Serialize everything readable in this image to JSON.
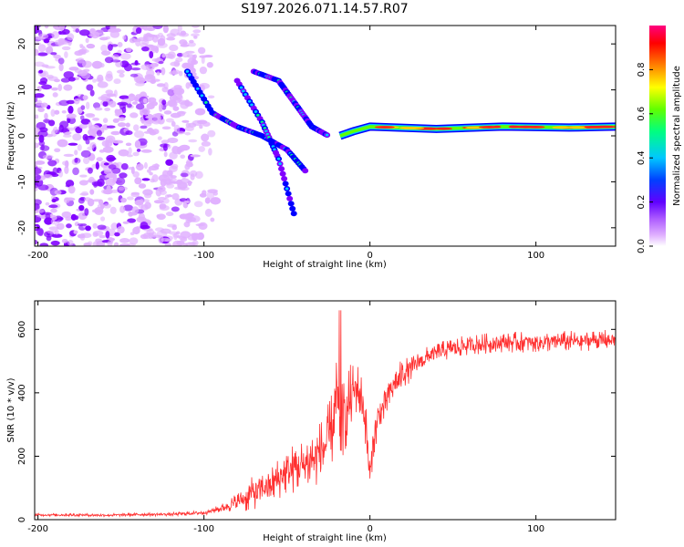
{
  "title": "S197.2026.071.14.57.R07",
  "spectrogram": {
    "type": "heatmap",
    "xlabel": "Height of straight line (km)",
    "ylabel": "Frequency (Hz)",
    "xlim": [
      -202,
      148
    ],
    "ylim": [
      -24,
      24
    ],
    "xticks": [
      -200,
      -100,
      0,
      100
    ],
    "yticks": [
      -20,
      -10,
      0,
      10,
      20
    ],
    "colorbar": {
      "label": "Normalized spectral amplitude",
      "range": [
        0,
        1
      ],
      "ticks": [
        0,
        0.2,
        0.4,
        0.6,
        0.8
      ],
      "colors": [
        "#ffffff",
        "#e0b0ff",
        "#8000ff",
        "#0000ff",
        "#00c8ff",
        "#00ff80",
        "#60ff00",
        "#ffff00",
        "#ff8000",
        "#ff0000",
        "#ff0080"
      ]
    },
    "features": {
      "noise_region": [
        -202,
        -105
      ],
      "signal_line": {
        "x": [
          -18,
          -10,
          0,
          40,
          80,
          120,
          148
        ],
        "freq": [
          0,
          1,
          2,
          1.5,
          2,
          1.8,
          2
        ]
      },
      "dispersive_branches": [
        {
          "x": [
            -110,
            -95,
            -80,
            -65,
            -50,
            -38
          ],
          "freq": [
            14,
            5,
            2,
            0,
            -3,
            -8
          ]
        },
        {
          "x": [
            -70,
            -55,
            -45,
            -35,
            -25
          ],
          "freq": [
            14,
            12,
            7,
            2,
            0
          ]
        },
        {
          "x": [
            -80,
            -65,
            -55,
            -45
          ],
          "freq": [
            12,
            3,
            -5,
            -18
          ]
        }
      ]
    }
  },
  "snr": {
    "type": "line",
    "xlabel": "Height of straight line (km)",
    "ylabel": "SNR (10 * v/v)",
    "xlim": [
      -202,
      148
    ],
    "ylim": [
      0,
      690
    ],
    "xticks": [
      -200,
      -100,
      0,
      100
    ],
    "yticks": [
      0,
      200,
      400,
      600
    ],
    "color": "#ff3030",
    "series": [
      {
        "name": "SNR",
        "x": [
          -202,
          -180,
          -160,
          -140,
          -120,
          -100,
          -90,
          -80,
          -75,
          -70,
          -65,
          -60,
          -55,
          -50,
          -45,
          -40,
          -35,
          -30,
          -25,
          -22,
          -20,
          -18,
          -15,
          -12,
          -10,
          -8,
          -5,
          -3,
          -1,
          0,
          2,
          5,
          10,
          15,
          20,
          25,
          30,
          40,
          50,
          60,
          70,
          80,
          90,
          100,
          110,
          120,
          130,
          140,
          148
        ],
        "y": [
          15,
          15,
          14,
          16,
          17,
          22,
          35,
          55,
          70,
          85,
          95,
          110,
          130,
          150,
          165,
          170,
          190,
          210,
          250,
          300,
          380,
          300,
          330,
          370,
          400,
          420,
          380,
          330,
          200,
          130,
          250,
          320,
          380,
          430,
          460,
          480,
          500,
          525,
          540,
          550,
          555,
          558,
          560,
          560,
          562,
          563,
          565,
          566,
          567
        ],
        "spread": [
          8,
          8,
          8,
          9,
          9,
          12,
          20,
          50,
          80,
          90,
          90,
          100,
          110,
          120,
          140,
          150,
          160,
          170,
          200,
          200,
          240,
          200,
          200,
          200,
          160,
          140,
          130,
          130,
          120,
          80,
          100,
          110,
          100,
          90,
          80,
          70,
          60,
          55,
          55,
          55,
          55,
          55,
          55,
          55,
          55,
          55,
          55,
          55,
          55
        ]
      }
    ]
  }
}
